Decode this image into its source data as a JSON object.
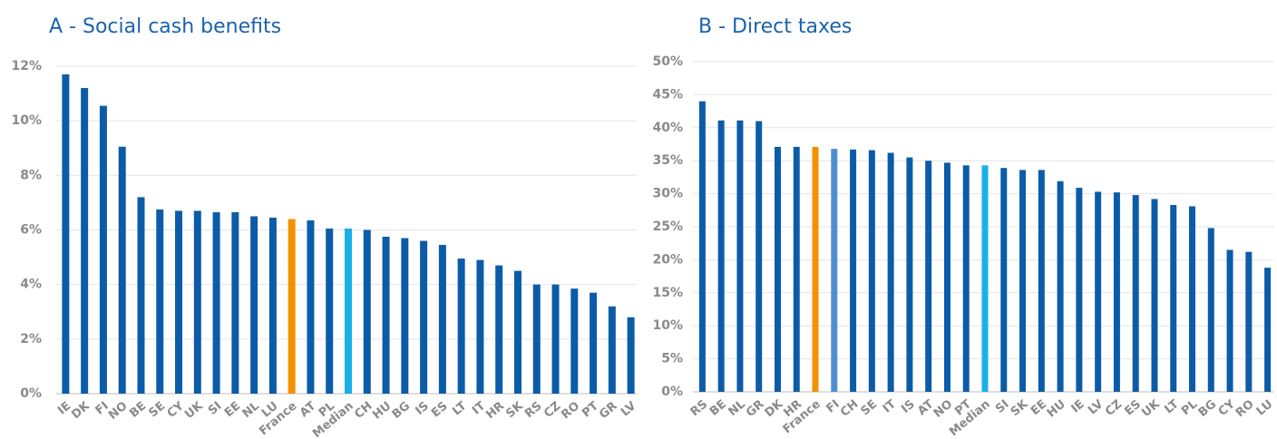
{
  "chart_data": [
    {
      "type": "bar",
      "title": "A - Social cash benefits",
      "categories": [
        "IE",
        "DK",
        "FI",
        "NO",
        "BE",
        "SE",
        "CY",
        "UK",
        "SI",
        "EE",
        "NL",
        "LU",
        "France",
        "AT",
        "PL",
        "Median",
        "CH",
        "HU",
        "BG",
        "IS",
        "ES",
        "LT",
        "IT",
        "HR",
        "SK",
        "RS",
        "CZ",
        "RO",
        "PT",
        "GR",
        "LV"
      ],
      "values": [
        11.7,
        11.2,
        10.55,
        9.05,
        7.2,
        6.75,
        6.7,
        6.7,
        6.65,
        6.65,
        6.5,
        6.45,
        6.4,
        6.35,
        6.05,
        6.05,
        6.0,
        5.75,
        5.7,
        5.6,
        5.45,
        4.95,
        4.9,
        4.7,
        4.5,
        4.0,
        4.0,
        3.85,
        3.7,
        3.2,
        2.8
      ],
      "color": "#0b5ca8",
      "bar_colors": {
        "France": "#f39200",
        "Median": "#1ab0e8"
      },
      "label_colors": {
        "France": "#f39200",
        "Median": "#1ab0e8"
      },
      "ylim": [
        0,
        12
      ],
      "yticks": [
        {
          "value": 0,
          "label": "0%"
        },
        {
          "value": 2,
          "label": "2%"
        },
        {
          "value": 4,
          "label": "4%"
        },
        {
          "value": 6,
          "label": "6%"
        },
        {
          "value": 8,
          "label": "8%"
        },
        {
          "value": 10,
          "label": "10%"
        },
        {
          "value": 12,
          "label": "12%"
        }
      ],
      "grid": true
    },
    {
      "type": "bar",
      "title": "B - Direct taxes",
      "categories": [
        "RS",
        "BE",
        "NL",
        "GR",
        "DK",
        "HR",
        "France",
        "FI",
        "CH",
        "SE",
        "IT",
        "IS",
        "AT",
        "NO",
        "PT",
        "Median",
        "SI",
        "SK",
        "EE",
        "HU",
        "IE",
        "LV",
        "CZ",
        "ES",
        "UK",
        "LT",
        "PL",
        "BG",
        "CY",
        "RO",
        "LU"
      ],
      "values": [
        44.0,
        41.1,
        41.1,
        41.0,
        37.1,
        37.1,
        37.1,
        36.8,
        36.7,
        36.6,
        36.2,
        35.5,
        35.0,
        34.7,
        34.3,
        34.3,
        33.9,
        33.6,
        33.6,
        31.9,
        30.9,
        30.3,
        30.2,
        29.8,
        29.2,
        28.3,
        28.1,
        24.8,
        21.5,
        21.2,
        18.8
      ],
      "color": "#0b5ca8",
      "bar_colors": {
        "France": "#f39200",
        "Median": "#1ab0e8",
        "FI": "#4f8fd0"
      },
      "label_colors": {
        "France": "#f39200",
        "Median": "#1ab0e8"
      },
      "ylim": [
        0,
        50
      ],
      "yticks": [
        {
          "value": 0,
          "label": "0%"
        },
        {
          "value": 5,
          "label": "5%"
        },
        {
          "value": 10,
          "label": "10%"
        },
        {
          "value": 15,
          "label": "15%"
        },
        {
          "value": 20,
          "label": "20%"
        },
        {
          "value": 25,
          "label": "25%"
        },
        {
          "value": 30,
          "label": "30%"
        },
        {
          "value": 35,
          "label": "35%"
        },
        {
          "value": 40,
          "label": "40%"
        },
        {
          "value": 45,
          "label": "45%"
        },
        {
          "value": 50,
          "label": "50%"
        }
      ],
      "grid": true
    }
  ]
}
